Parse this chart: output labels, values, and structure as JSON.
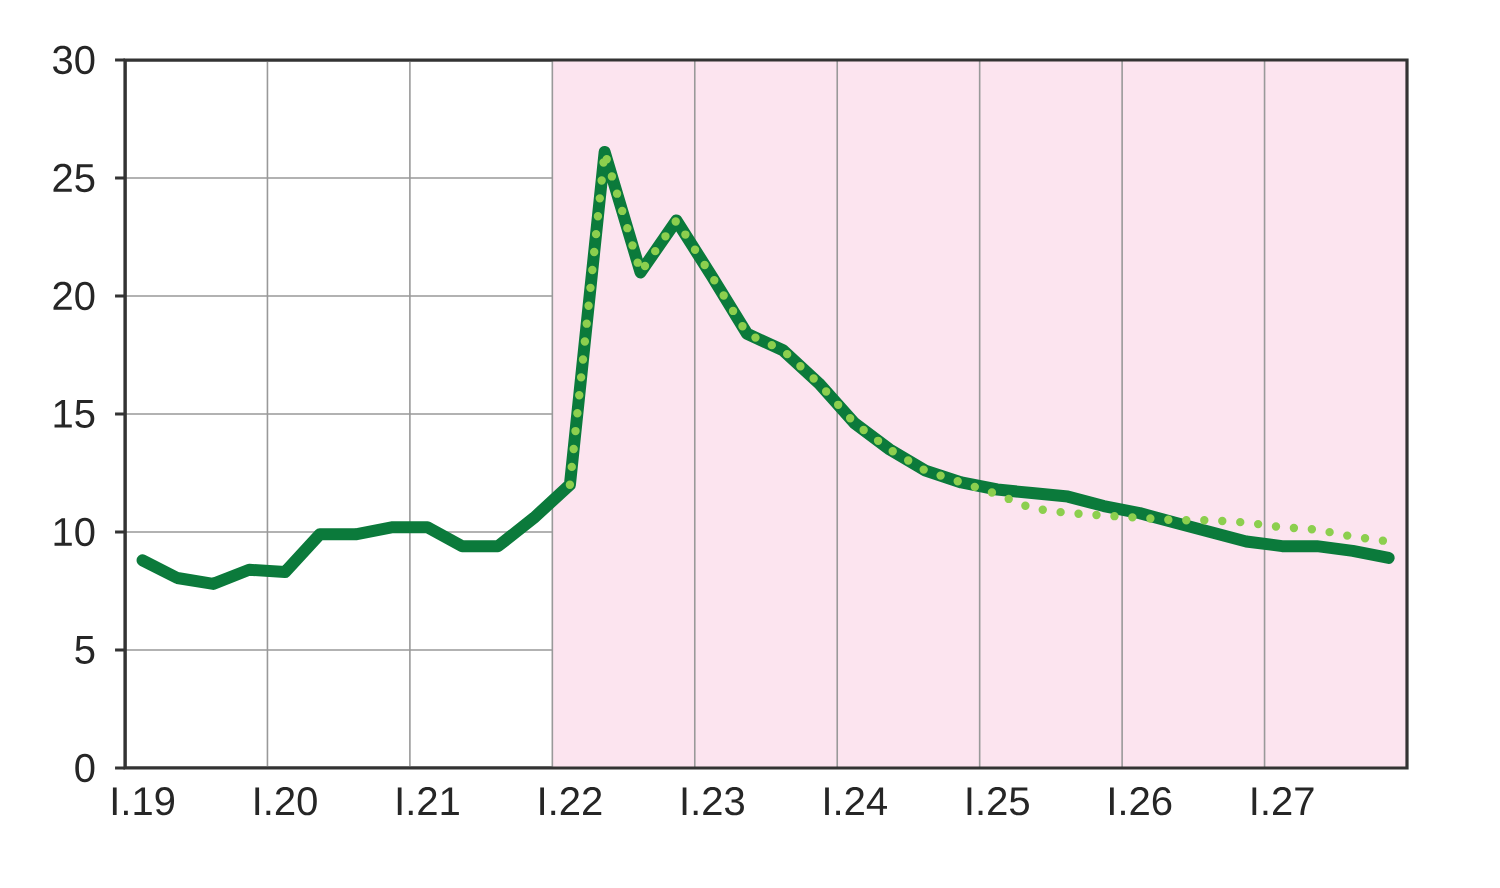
{
  "chart_data": {
    "type": "line",
    "x": [
      "2019-02-15",
      "2019-05-15",
      "2019-08-15",
      "2019-11-15",
      "2020-02-15",
      "2020-05-15",
      "2020-08-15",
      "2020-11-15",
      "2021-02-15",
      "2021-05-15",
      "2021-08-15",
      "2021-11-15",
      "2022-02-15",
      "2022-05-15",
      "2022-08-15",
      "2022-11-15",
      "2023-02-15",
      "2023-05-15",
      "2023-08-15",
      "2023-11-15",
      "2024-02-15",
      "2024-05-15",
      "2024-08-15",
      "2024-11-15",
      "2025-02-15",
      "2025-05-15",
      "2025-08-15",
      "2025-11-15",
      "2026-02-15",
      "2026-05-15",
      "2026-08-15",
      "2026-11-15",
      "2027-02-15",
      "2027-05-15",
      "2027-08-15",
      "2027-11-15"
    ],
    "series": [
      {
        "color": "#0b7a3b",
        "line_style": "solid",
        "values": [
          8.8,
          8.05,
          7.8,
          8.4,
          8.3,
          9.9,
          9.9,
          10.2,
          10.2,
          9.4,
          9.4,
          10.6,
          12.0,
          26.1,
          21.0,
          23.2,
          20.8,
          18.4,
          17.7,
          16.3,
          14.6,
          13.5,
          12.6,
          12.1,
          11.8,
          11.65,
          11.5,
          11.1,
          10.8,
          10.4,
          10.0,
          9.6,
          9.4,
          9.4,
          9.2,
          8.9
        ]
      },
      {
        "color": "#8ccf4e",
        "line_style": "dotted",
        "values": [
          null,
          null,
          null,
          null,
          null,
          null,
          null,
          null,
          null,
          null,
          null,
          null,
          12.0,
          26.1,
          21.0,
          23.2,
          20.8,
          18.4,
          17.7,
          16.3,
          14.6,
          13.5,
          12.6,
          12.1,
          11.6,
          11.0,
          10.8,
          10.7,
          10.6,
          10.5,
          10.5,
          10.4,
          10.2,
          10.1,
          9.8,
          9.6
        ]
      }
    ],
    "xlim": [
      "2019-01-01",
      "2028-01-01"
    ],
    "xticks": [
      {
        "value": "2019-02-15",
        "label": "I.19"
      },
      {
        "value": "2020-02-15",
        "label": "I.20"
      },
      {
        "value": "2021-02-15",
        "label": "I.21"
      },
      {
        "value": "2022-02-15",
        "label": "I.22"
      },
      {
        "value": "2023-02-15",
        "label": "I.23"
      },
      {
        "value": "2024-02-15",
        "label": "I.24"
      },
      {
        "value": "2025-02-15",
        "label": "I.25"
      },
      {
        "value": "2026-02-15",
        "label": "I.26"
      },
      {
        "value": "2027-02-15",
        "label": "I.27"
      }
    ],
    "ylim": [
      0,
      30
    ],
    "yticks": [
      0,
      5,
      10,
      15,
      20,
      25,
      30
    ],
    "grid": "y",
    "ref_lines": [
      {
        "axis": "x",
        "value": "2020-01-01",
        "color": "#999999"
      },
      {
        "axis": "x",
        "value": "2021-01-01",
        "color": "#999999"
      },
      {
        "axis": "x",
        "value": "2022-01-01",
        "color": "#999999"
      },
      {
        "axis": "x",
        "value": "2023-01-01",
        "color": "#999999"
      },
      {
        "axis": "x",
        "value": "2024-01-01",
        "color": "#999999"
      },
      {
        "axis": "x",
        "value": "2025-01-01",
        "color": "#999999"
      },
      {
        "axis": "x",
        "value": "2026-01-01",
        "color": "#999999"
      },
      {
        "axis": "x",
        "value": "2027-01-01",
        "color": "#999999"
      }
    ],
    "bands": [
      {
        "axis": "x",
        "from": "2022-01-01",
        "to": "2028-01-01",
        "color": "#fce4ef"
      }
    ]
  }
}
